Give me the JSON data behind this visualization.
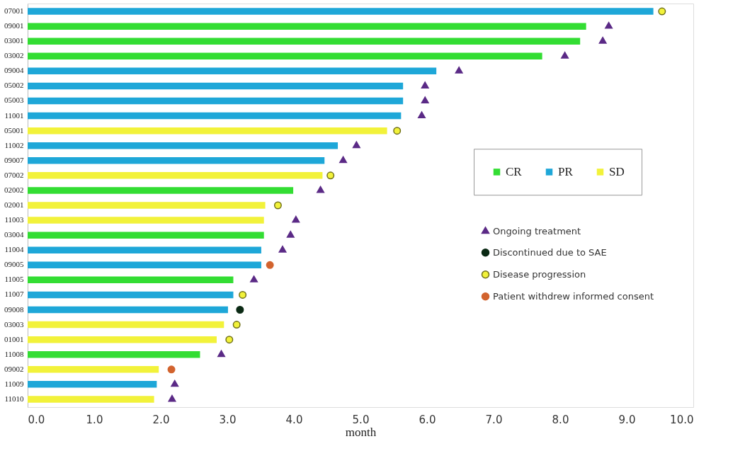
{
  "chart_data": {
    "type": "bar",
    "orientation": "horizontal",
    "xlabel": "month",
    "categories": [
      "07001",
      "09001",
      "03001",
      "03002",
      "09004",
      "05002",
      "05003",
      "11001",
      "05001",
      "11002",
      "09007",
      "07002",
      "02002",
      "02001",
      "11003",
      "03004",
      "11004",
      "09005",
      "11005",
      "11007",
      "09008",
      "03003",
      "01001",
      "11008",
      "09002",
      "11009",
      "11010"
    ],
    "series": [
      {
        "name": "CR",
        "color": "#33dd33",
        "values": [
          null,
          8.39,
          8.3,
          7.73,
          null,
          null,
          null,
          null,
          null,
          null,
          null,
          null,
          3.99,
          null,
          null,
          3.55,
          null,
          null,
          3.09,
          null,
          null,
          null,
          null,
          2.59,
          null,
          null,
          null
        ]
      },
      {
        "name": "PR",
        "color": "#1ea7d8",
        "values": [
          9.4,
          null,
          null,
          null,
          6.14,
          5.64,
          5.64,
          5.61,
          null,
          4.66,
          4.46,
          null,
          null,
          null,
          null,
          null,
          3.51,
          3.51,
          null,
          3.09,
          3.01,
          null,
          null,
          null,
          null,
          1.94,
          null
        ]
      },
      {
        "name": "SD",
        "color": "#f2f23a",
        "values": [
          null,
          null,
          null,
          null,
          null,
          null,
          null,
          null,
          5.4,
          null,
          null,
          4.43,
          null,
          3.57,
          3.55,
          null,
          null,
          null,
          null,
          null,
          null,
          2.95,
          2.84,
          null,
          1.97,
          null,
          1.9
        ]
      },
      {
        "name": "Ongoing treatment",
        "type": "scatter",
        "marker": "triangle",
        "color": "#5b2a86",
        "x": [
          "09001",
          "03001",
          "03002",
          "09004",
          "05002",
          "05003",
          "11001",
          "11002",
          "09007",
          "02002",
          "11003",
          "03004",
          "11004",
          "11005",
          "11008",
          "11009",
          "11010"
        ],
        "values": [
          8.73,
          8.64,
          8.07,
          6.48,
          5.97,
          5.97,
          5.92,
          4.94,
          4.74,
          4.4,
          4.03,
          3.95,
          3.83,
          3.4,
          2.91,
          2.21,
          2.17
        ]
      },
      {
        "name": "Discontinued due to SAE",
        "type": "scatter",
        "marker": "circle",
        "color": "#0b2a14",
        "x": [
          "09008"
        ],
        "values": [
          3.19
        ]
      },
      {
        "name": "Disease progression",
        "type": "scatter",
        "marker": "circle",
        "color": "#f2f23a",
        "x": [
          "07001",
          "05001",
          "07002",
          "02001",
          "11007",
          "03003",
          "01001"
        ],
        "values": [
          9.53,
          5.55,
          4.55,
          3.76,
          3.23,
          3.14,
          3.03
        ]
      },
      {
        "name": "Patient withdrew informed consent",
        "type": "scatter",
        "marker": "circle",
        "color": "#d2632e",
        "x": [
          "09005",
          "09002"
        ],
        "values": [
          3.64,
          2.16
        ]
      }
    ],
    "xlim": [
      0,
      10
    ],
    "xticks": [
      {
        "value": 0,
        "label": "0.0"
      },
      {
        "value": 1,
        "label": "1.0"
      },
      {
        "value": 2,
        "label": "2.0"
      },
      {
        "value": 3,
        "label": "3.0"
      },
      {
        "value": 4,
        "label": "4.0"
      },
      {
        "value": 5,
        "label": "5.0"
      },
      {
        "value": 6,
        "label": "6.0"
      },
      {
        "value": 7,
        "label": "7.0"
      },
      {
        "value": 8,
        "label": "8.0"
      },
      {
        "value": 9,
        "label": "9.0"
      },
      {
        "value": 10,
        "label": "10.0"
      }
    ],
    "legend": "right",
    "grid": false
  }
}
